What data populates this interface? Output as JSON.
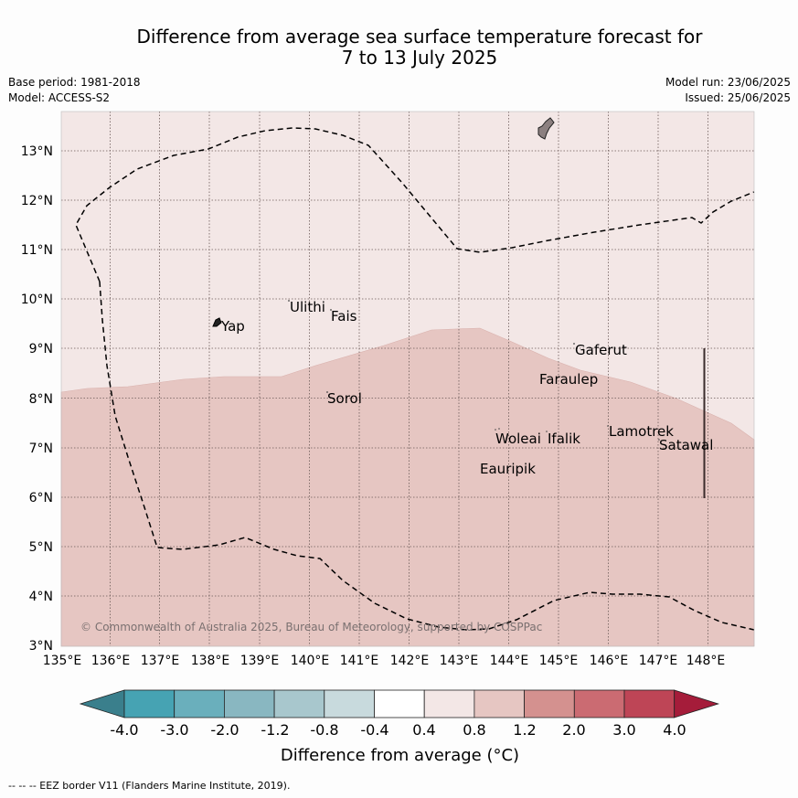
{
  "title": {
    "line1": "Difference from average sea surface temperature forecast for",
    "line2": "7 to 13 July 2025"
  },
  "meta": {
    "base_period": "Base period: 1981-2018",
    "model": "Model: ACCESS-S2",
    "model_run": "Model run: 23/06/2025",
    "issued": "Issued: 25/06/2025"
  },
  "map": {
    "lon_labels": [
      "135°E",
      "136°E",
      "137°E",
      "138°E",
      "139°E",
      "140°E",
      "141°E",
      "142°E",
      "143°E",
      "144°E",
      "145°E",
      "146°E",
      "147°E",
      "148°E"
    ],
    "lat_labels": [
      "3°N",
      "4°N",
      "5°N",
      "6°N",
      "7°N",
      "8°N",
      "9°N",
      "10°N",
      "11°N",
      "12°N",
      "13°N"
    ],
    "places": [
      {
        "name": "Ulithi"
      },
      {
        "name": "Fais"
      },
      {
        "name": "Yap"
      },
      {
        "name": "Gaferut"
      },
      {
        "name": "Faraulep"
      },
      {
        "name": "Sorol"
      },
      {
        "name": "Woleai"
      },
      {
        "name": "Ifalik"
      },
      {
        "name": "Lamotrek"
      },
      {
        "name": "Satawal"
      },
      {
        "name": "Eauripik"
      }
    ],
    "watermark": "© Commonwealth of Australia 2025, Bureau of Meteorology, supported by COSPPac",
    "colors": {
      "band_0_4_0_8": "#f3e7e6",
      "band_0_8_1_2": "#e6c6c2"
    }
  },
  "colorbar": {
    "labels": [
      "-4.0",
      "-3.0",
      "-2.0",
      "-1.2",
      "-0.8",
      "-0.4",
      "0.4",
      "0.8",
      "1.2",
      "2.0",
      "3.0",
      "4.0"
    ],
    "colors": [
      "#3a7f8c",
      "#46a3b3",
      "#6aafbc",
      "#89b7c1",
      "#a8c7cd",
      "#c8dadd",
      "#ffffff",
      "#f3e7e6",
      "#e6c6c2",
      "#d4918f",
      "#cb6b72",
      "#be4556",
      "#a51c3a"
    ],
    "title": "Difference from average (°C)"
  },
  "credit": "--  --  -- EEZ border V11 (Flanders Marine Institute, 2019)."
}
